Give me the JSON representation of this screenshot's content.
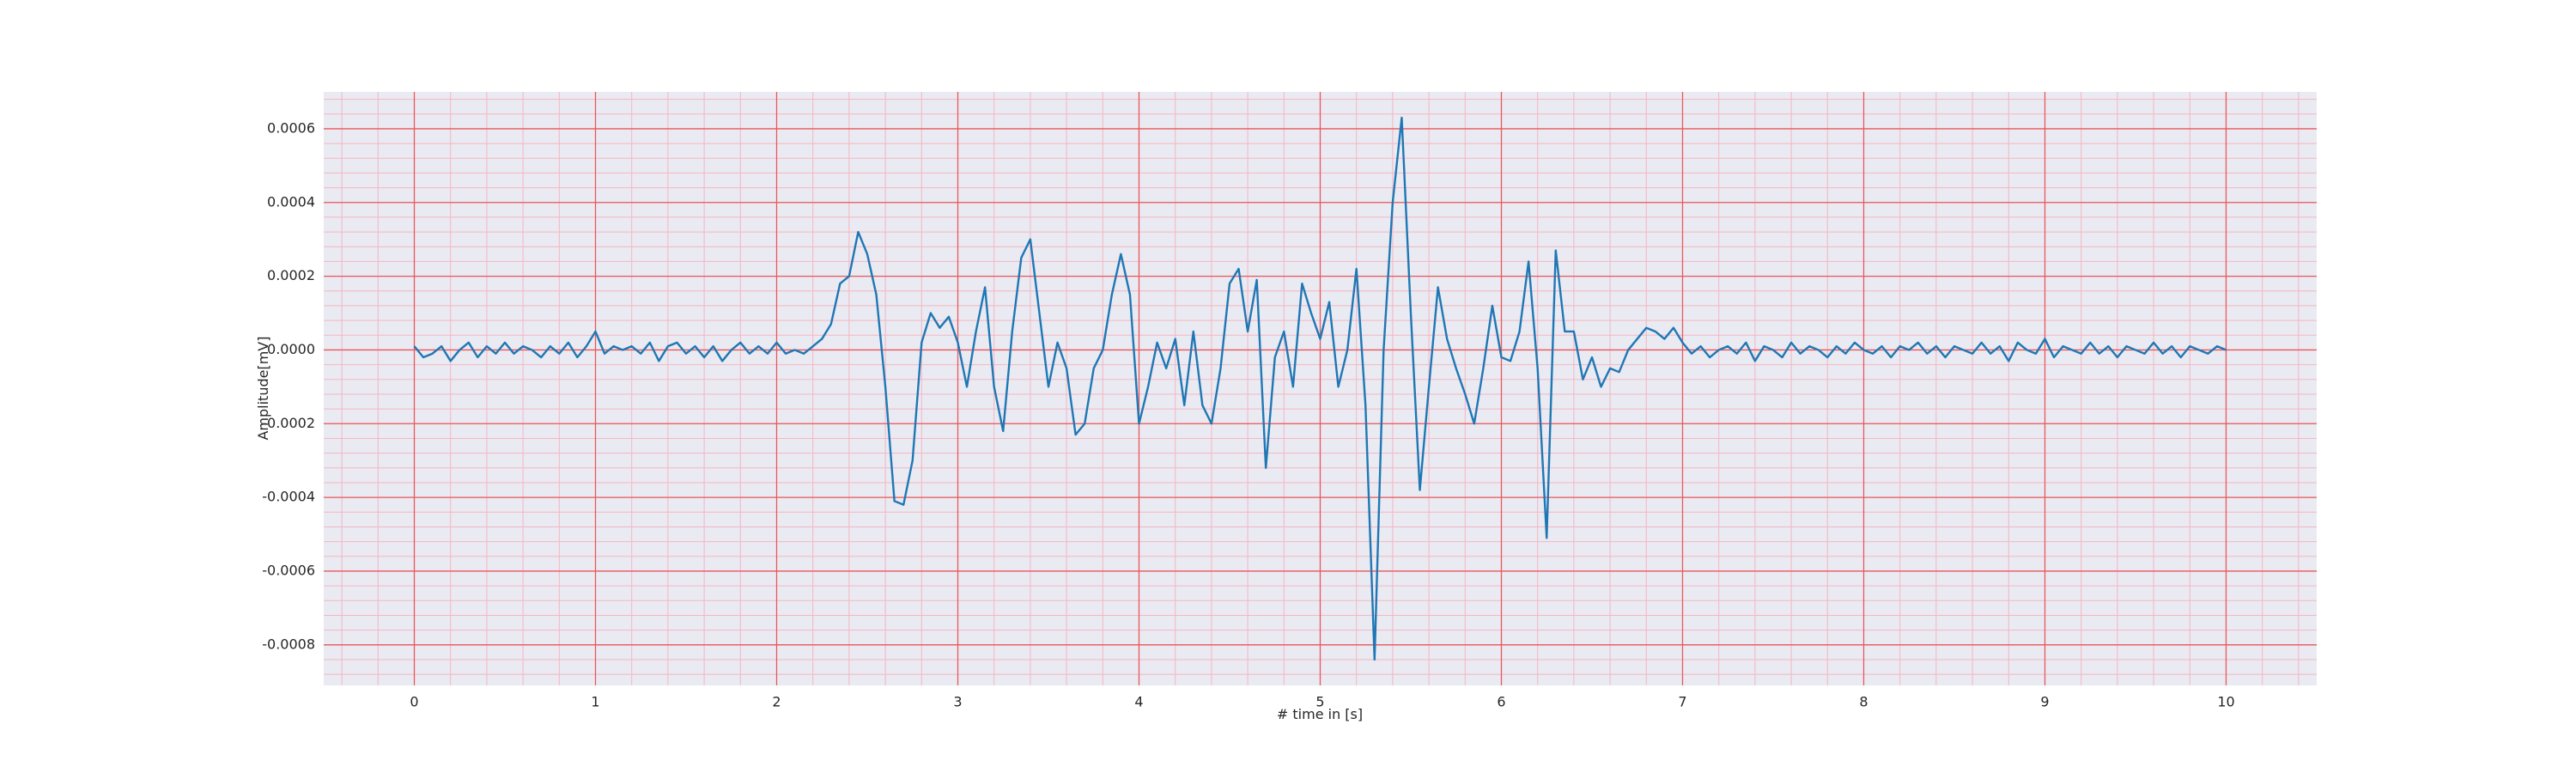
{
  "chart_data": {
    "type": "line",
    "xlabel": "# time in [s]",
    "ylabel": "Amplitude[mV]",
    "color": "#1f77b4",
    "grid": true,
    "minor_grid": true,
    "xlim": [
      -0.5,
      10.5
    ],
    "ylim": [
      -0.00091,
      0.0007
    ],
    "xticks": [
      0,
      1,
      2,
      3,
      4,
      5,
      6,
      7,
      8,
      9,
      10
    ],
    "yticks": [
      -0.0008,
      -0.0006,
      -0.0004,
      -0.0002,
      {
        "value": 0,
        "label": "0.0000"
      },
      0.0002,
      0.0004,
      0.0006
    ],
    "x": [
      0,
      0.05,
      0.1,
      0.15,
      0.2,
      0.25,
      0.3,
      0.35,
      0.4,
      0.45,
      0.5,
      0.55,
      0.6,
      0.65,
      0.7,
      0.75,
      0.8,
      0.85,
      0.9,
      0.95,
      1,
      1.05,
      1.1,
      1.15,
      1.2,
      1.25,
      1.3,
      1.35,
      1.4,
      1.45,
      1.5,
      1.55,
      1.6,
      1.65,
      1.7,
      1.75,
      1.8,
      1.85,
      1.9,
      1.95,
      2,
      2.05,
      2.1,
      2.15,
      2.2,
      2.25,
      2.3,
      2.35,
      2.4,
      2.45,
      2.5,
      2.55,
      2.6,
      2.65,
      2.7,
      2.75,
      2.8,
      2.85,
      2.9,
      2.95,
      3,
      3.05,
      3.1,
      3.15,
      3.2,
      3.25,
      3.3,
      3.35,
      3.4,
      3.45,
      3.5,
      3.55,
      3.6,
      3.65,
      3.7,
      3.75,
      3.8,
      3.85,
      3.9,
      3.95,
      4,
      4.05,
      4.1,
      4.15,
      4.2,
      4.25,
      4.3,
      4.35,
      4.4,
      4.45,
      4.5,
      4.55,
      4.6,
      4.65,
      4.7,
      4.75,
      4.8,
      4.85,
      4.9,
      4.95,
      5,
      5.05,
      5.1,
      5.15,
      5.2,
      5.25,
      5.3,
      5.35,
      5.4,
      5.45,
      5.5,
      5.55,
      5.6,
      5.65,
      5.7,
      5.75,
      5.8,
      5.85,
      5.9,
      5.95,
      6,
      6.05,
      6.1,
      6.15,
      6.2,
      6.25,
      6.3,
      6.35,
      6.4,
      6.45,
      6.5,
      6.55,
      6.6,
      6.65,
      6.7,
      6.75,
      6.8,
      6.85,
      6.9,
      6.95,
      7,
      7.05,
      7.1,
      7.15,
      7.2,
      7.25,
      7.3,
      7.35,
      7.4,
      7.45,
      7.5,
      7.55,
      7.6,
      7.65,
      7.7,
      7.75,
      7.8,
      7.85,
      7.9,
      7.95,
      8,
      8.05,
      8.1,
      8.15,
      8.2,
      8.25,
      8.3,
      8.35,
      8.4,
      8.45,
      8.5,
      8.55,
      8.6,
      8.65,
      8.7,
      8.75,
      8.8,
      8.85,
      8.9,
      8.95,
      9,
      9.05,
      9.1,
      9.15,
      9.2,
      9.25,
      9.3,
      9.35,
      9.4,
      9.45,
      9.5,
      9.55,
      9.6,
      9.65,
      9.7,
      9.75,
      9.8,
      9.85,
      9.9,
      9.95,
      10
    ],
    "values": [
      1e-05,
      -2e-05,
      -1e-05,
      1e-05,
      -3e-05,
      0,
      2e-05,
      -2e-05,
      1e-05,
      -1e-05,
      2e-05,
      -1e-05,
      1e-05,
      0,
      -2e-05,
      1e-05,
      -1e-05,
      2e-05,
      -2e-05,
      1e-05,
      5e-05,
      -1e-05,
      1e-05,
      0,
      1e-05,
      -1e-05,
      2e-05,
      -3e-05,
      1e-05,
      2e-05,
      -1e-05,
      1e-05,
      -2e-05,
      1e-05,
      -3e-05,
      0,
      2e-05,
      -1e-05,
      1e-05,
      -1e-05,
      2e-05,
      -1e-05,
      0,
      -1e-05,
      1e-05,
      3e-05,
      7e-05,
      0.00018,
      0.0002,
      0.00032,
      0.00026,
      0.00015,
      -0.0001,
      -0.00041,
      -0.00042,
      -0.0003,
      2e-05,
      0.0001,
      6e-05,
      9e-05,
      2e-05,
      -0.0001,
      5e-05,
      0.00017,
      -0.0001,
      -0.00022,
      5e-05,
      0.00025,
      0.0003,
      0.0001,
      -0.0001,
      2e-05,
      -5e-05,
      -0.00023,
      -0.0002,
      -5e-05,
      0,
      0.00015,
      0.00026,
      0.00015,
      -0.0002,
      -0.0001,
      2e-05,
      -5e-05,
      3e-05,
      -0.00015,
      5e-05,
      -0.00015,
      -0.0002,
      -5e-05,
      0.00018,
      0.00022,
      5e-05,
      0.00019,
      -0.00032,
      -2e-05,
      5e-05,
      -0.0001,
      0.00018,
      0.0001,
      3e-05,
      0.00013,
      -0.0001,
      0,
      0.00022,
      -0.00015,
      -0.00084,
      0,
      0.0004,
      0.00063,
      0.0001,
      -0.00038,
      -0.0001,
      0.00017,
      3e-05,
      -5e-05,
      -0.00012,
      -0.0002,
      -5e-05,
      0.00012,
      -2e-05,
      -3e-05,
      5e-05,
      0.00024,
      -5e-05,
      -0.00051,
      0.00027,
      5e-05,
      5e-05,
      -8e-05,
      -2e-05,
      -0.0001,
      -5e-05,
      -6e-05,
      0,
      3e-05,
      6e-05,
      5e-05,
      3e-05,
      6e-05,
      2e-05,
      -1e-05,
      1e-05,
      -2e-05,
      0,
      1e-05,
      -1e-05,
      2e-05,
      -3e-05,
      1e-05,
      0,
      -2e-05,
      2e-05,
      -1e-05,
      1e-05,
      0,
      -2e-05,
      1e-05,
      -1e-05,
      2e-05,
      0,
      -1e-05,
      1e-05,
      -2e-05,
      1e-05,
      0,
      2e-05,
      -1e-05,
      1e-05,
      -2e-05,
      1e-05,
      0,
      -1e-05,
      2e-05,
      -1e-05,
      1e-05,
      -3e-05,
      2e-05,
      0,
      -1e-05,
      3e-05,
      -2e-05,
      1e-05,
      0,
      -1e-05,
      2e-05,
      -1e-05,
      1e-05,
      -2e-05,
      1e-05,
      0,
      -1e-05,
      2e-05,
      -1e-05,
      1e-05,
      -2e-05,
      1e-05,
      0,
      -1e-05,
      1e-05,
      0
    ]
  }
}
